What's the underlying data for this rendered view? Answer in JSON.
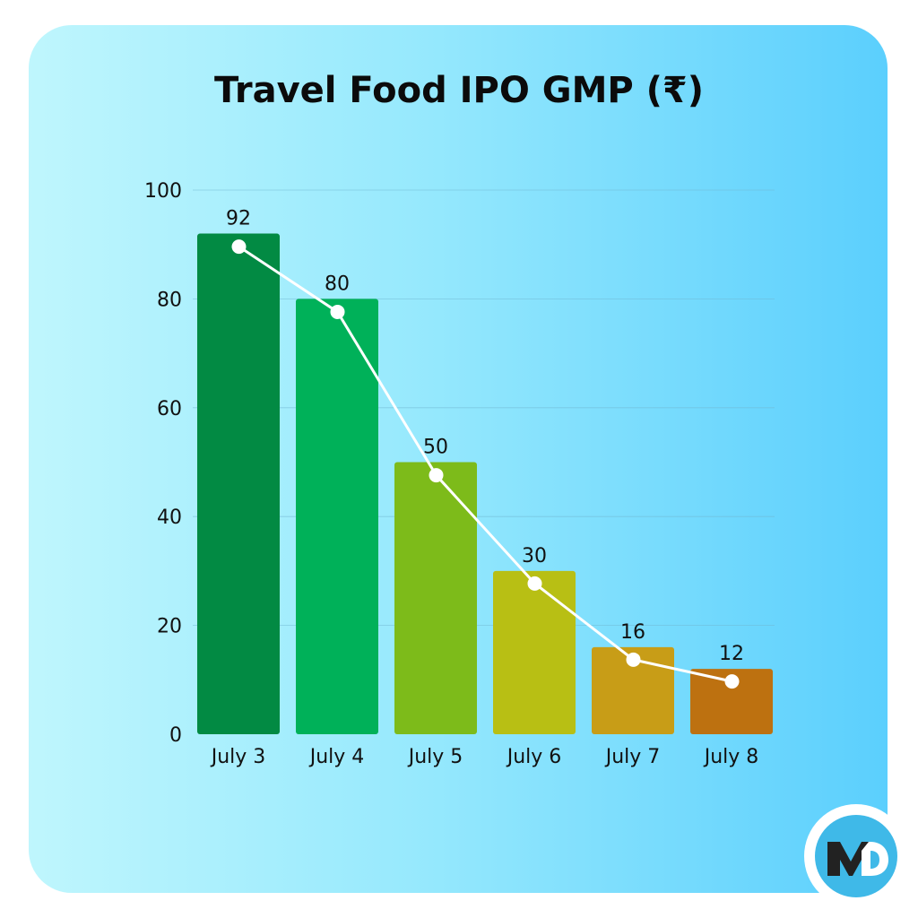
{
  "chart_data": {
    "type": "bar",
    "title": "Travel Food IPO GMP (₹)",
    "categories": [
      "July 3",
      "July 4",
      "July 5",
      "July 6",
      "July 7",
      "July 8"
    ],
    "values": [
      92,
      80,
      50,
      30,
      16,
      12
    ],
    "data_labels": [
      "92",
      "80",
      "50",
      "30",
      "16",
      "12"
    ],
    "line_values": [
      89.6,
      77.6,
      47.6,
      27.7,
      13.7,
      9.7
    ],
    "bar_colors": [
      "#028a43",
      "#00b159",
      "#7dbb1a",
      "#b8bf14",
      "#c89d17",
      "#bd7110"
    ],
    "line_color": "#ffffff",
    "ylim": [
      0,
      100
    ],
    "yticks": [
      0,
      20,
      40,
      60,
      80,
      100
    ],
    "grid": true,
    "xlabel": "",
    "ylabel": ""
  },
  "logo": {
    "text": "MD",
    "colors": {
      "ring": "#ffffff",
      "fill": "#3fb9e8",
      "m": "#222222",
      "d": "#ffffff"
    }
  }
}
